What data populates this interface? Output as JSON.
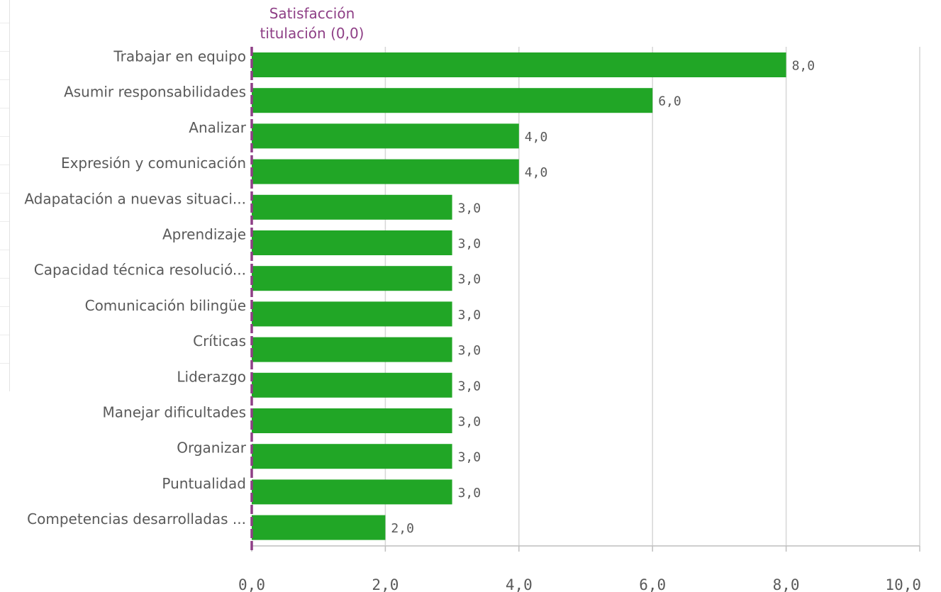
{
  "chart_data": {
    "type": "bar",
    "orientation": "horizontal",
    "categories": [
      "Trabajar en equipo",
      "Asumir responsabilidades",
      "Analizar",
      "Expresión y comunicación",
      "Adapatación a nuevas situaci...",
      "Aprendizaje",
      "Capacidad técnica resolució...",
      "Comunicación bilingüe",
      "Críticas",
      "Liderazgo",
      "Manejar dificultades",
      "Organizar",
      "Puntualidad",
      "Competencias desarrolladas ..."
    ],
    "values": [
      8.0,
      6.0,
      4.0,
      4.0,
      3.0,
      3.0,
      3.0,
      3.0,
      3.0,
      3.0,
      3.0,
      3.0,
      3.0,
      2.0
    ],
    "value_labels": [
      "8,0",
      "6,0",
      "4,0",
      "4,0",
      "3,0",
      "3,0",
      "3,0",
      "3,0",
      "3,0",
      "3,0",
      "3,0",
      "3,0",
      "3,0",
      "2,0"
    ],
    "xlim": [
      0,
      10
    ],
    "xticks": [
      0,
      2,
      4,
      6,
      8,
      10
    ],
    "xtick_labels": [
      "0,0",
      "2,0",
      "4,0",
      "6,0",
      "8,0",
      "10,0"
    ],
    "grid": true,
    "reference_line": {
      "label_line1": "Satisfacción",
      "label_line2": "titulación (0,0)",
      "value": 0.0,
      "color": "#8e3f86"
    },
    "bar_color": "#21a626"
  }
}
